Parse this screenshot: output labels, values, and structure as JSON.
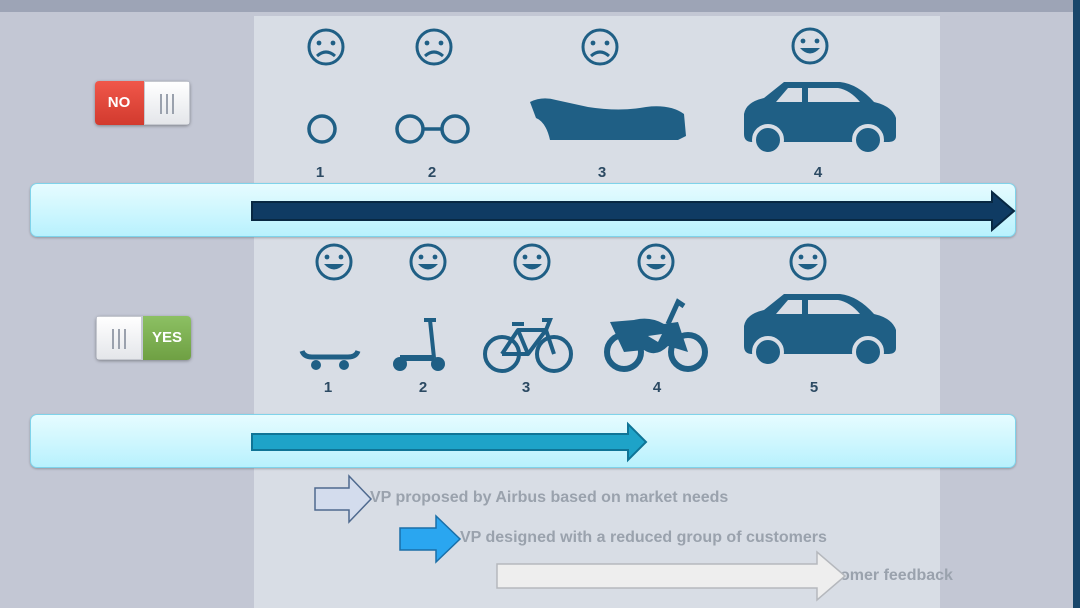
{
  "toggles": {
    "no_label": "NO",
    "yes_label": "YES"
  },
  "top_row": {
    "steps": [
      {
        "number": "1",
        "item": "wheel",
        "mood": "sad"
      },
      {
        "number": "2",
        "item": "two wheels",
        "mood": "sad"
      },
      {
        "number": "3",
        "item": "car body",
        "mood": "sad"
      },
      {
        "number": "4",
        "item": "car",
        "mood": "happy"
      }
    ]
  },
  "bottom_row": {
    "steps": [
      {
        "number": "1",
        "item": "skateboard",
        "mood": "happy"
      },
      {
        "number": "2",
        "item": "scooter",
        "mood": "happy"
      },
      {
        "number": "3",
        "item": "bicycle",
        "mood": "happy"
      },
      {
        "number": "4",
        "item": "motorcycle",
        "mood": "happy"
      },
      {
        "number": "5",
        "item": "car",
        "mood": "happy"
      }
    ]
  },
  "legend": {
    "item1": "VP proposed by Airbus based on market needs",
    "item2": "VP designed with a reduced group of customers",
    "item3": "omer feedback"
  },
  "colors": {
    "icon": "#1f5f85",
    "arrow_dark": "#0f3b63",
    "arrow_teal": "#1ea3c8",
    "toggle_red": "#e0463a",
    "toggle_green": "#7db052"
  }
}
